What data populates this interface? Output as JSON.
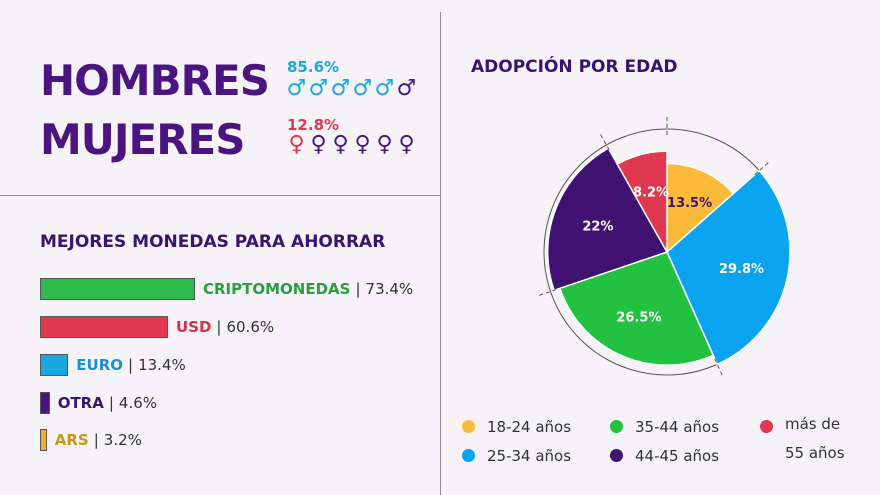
{
  "gender": {
    "men": {
      "label": "HOMBRES",
      "percent": "85.6%",
      "color": "#1aa6de",
      "icon": "male-symbol",
      "icon_total": 6,
      "icon_highlight": 5
    },
    "women": {
      "label": "MUJERES",
      "percent": "12.8%",
      "color": "#e0394f",
      "icon": "female-symbol",
      "icon_total": 6,
      "icon_highlight": 1
    },
    "dark_color": "#4a1580"
  },
  "savings": {
    "title": "MEJORES MONEDAS PARA AHORRAR",
    "chart_data": {
      "type": "bar",
      "orientation": "horizontal",
      "categories": [
        "CRIPTOMONEDAS",
        "USD",
        "EURO",
        "OTRA",
        "ARS"
      ],
      "values": [
        73.4,
        60.6,
        13.4,
        4.6,
        3.2
      ],
      "value_labels": [
        "73.4%",
        "60.6%",
        "13.4%",
        "4.6%",
        "3.2%"
      ],
      "colors": [
        "#2dbb49",
        "#e0394f",
        "#1aa6de",
        "#4a1580",
        "#e8b030"
      ],
      "label_colors": [
        "#2a9e3e",
        "#d83248",
        "#1a8fd0",
        "#3a1370",
        "#c9951a"
      ]
    }
  },
  "age": {
    "title": "ADOPCIÓN POR EDAD",
    "chart_data": {
      "type": "pie",
      "categories": [
        "18-24 años",
        "25-34 años",
        "35-44 años",
        "44-45 años",
        "más de 55 años"
      ],
      "values": [
        13.5,
        29.8,
        26.5,
        22,
        8.2
      ],
      "value_labels": [
        "13.5%",
        "29.8%",
        "26.5%",
        "22%",
        "8.2%"
      ],
      "colors": [
        "#fdb93a",
        "#0aa3ef",
        "#22c13f",
        "#3f1170",
        "#e0394f"
      ],
      "label_colors": [
        "#3a1370",
        "#ffffff",
        "#ffffff",
        "#ffffff",
        "#ffffff"
      ],
      "radii_relative": [
        0.72,
        1.0,
        0.92,
        0.97,
        0.82
      ],
      "legend": {
        "placement": "bottom",
        "items": [
          {
            "label": "18-24 años",
            "color": "#fdb93a"
          },
          {
            "label": "25-34 años",
            "color": "#0aa3ef"
          },
          {
            "label": "35-44 años",
            "color": "#22c13f"
          },
          {
            "label": "44-45 años",
            "color": "#3f1170"
          },
          {
            "label_line1": "más de",
            "label_line2": "55 años",
            "color": "#e0394f"
          }
        ]
      }
    }
  }
}
